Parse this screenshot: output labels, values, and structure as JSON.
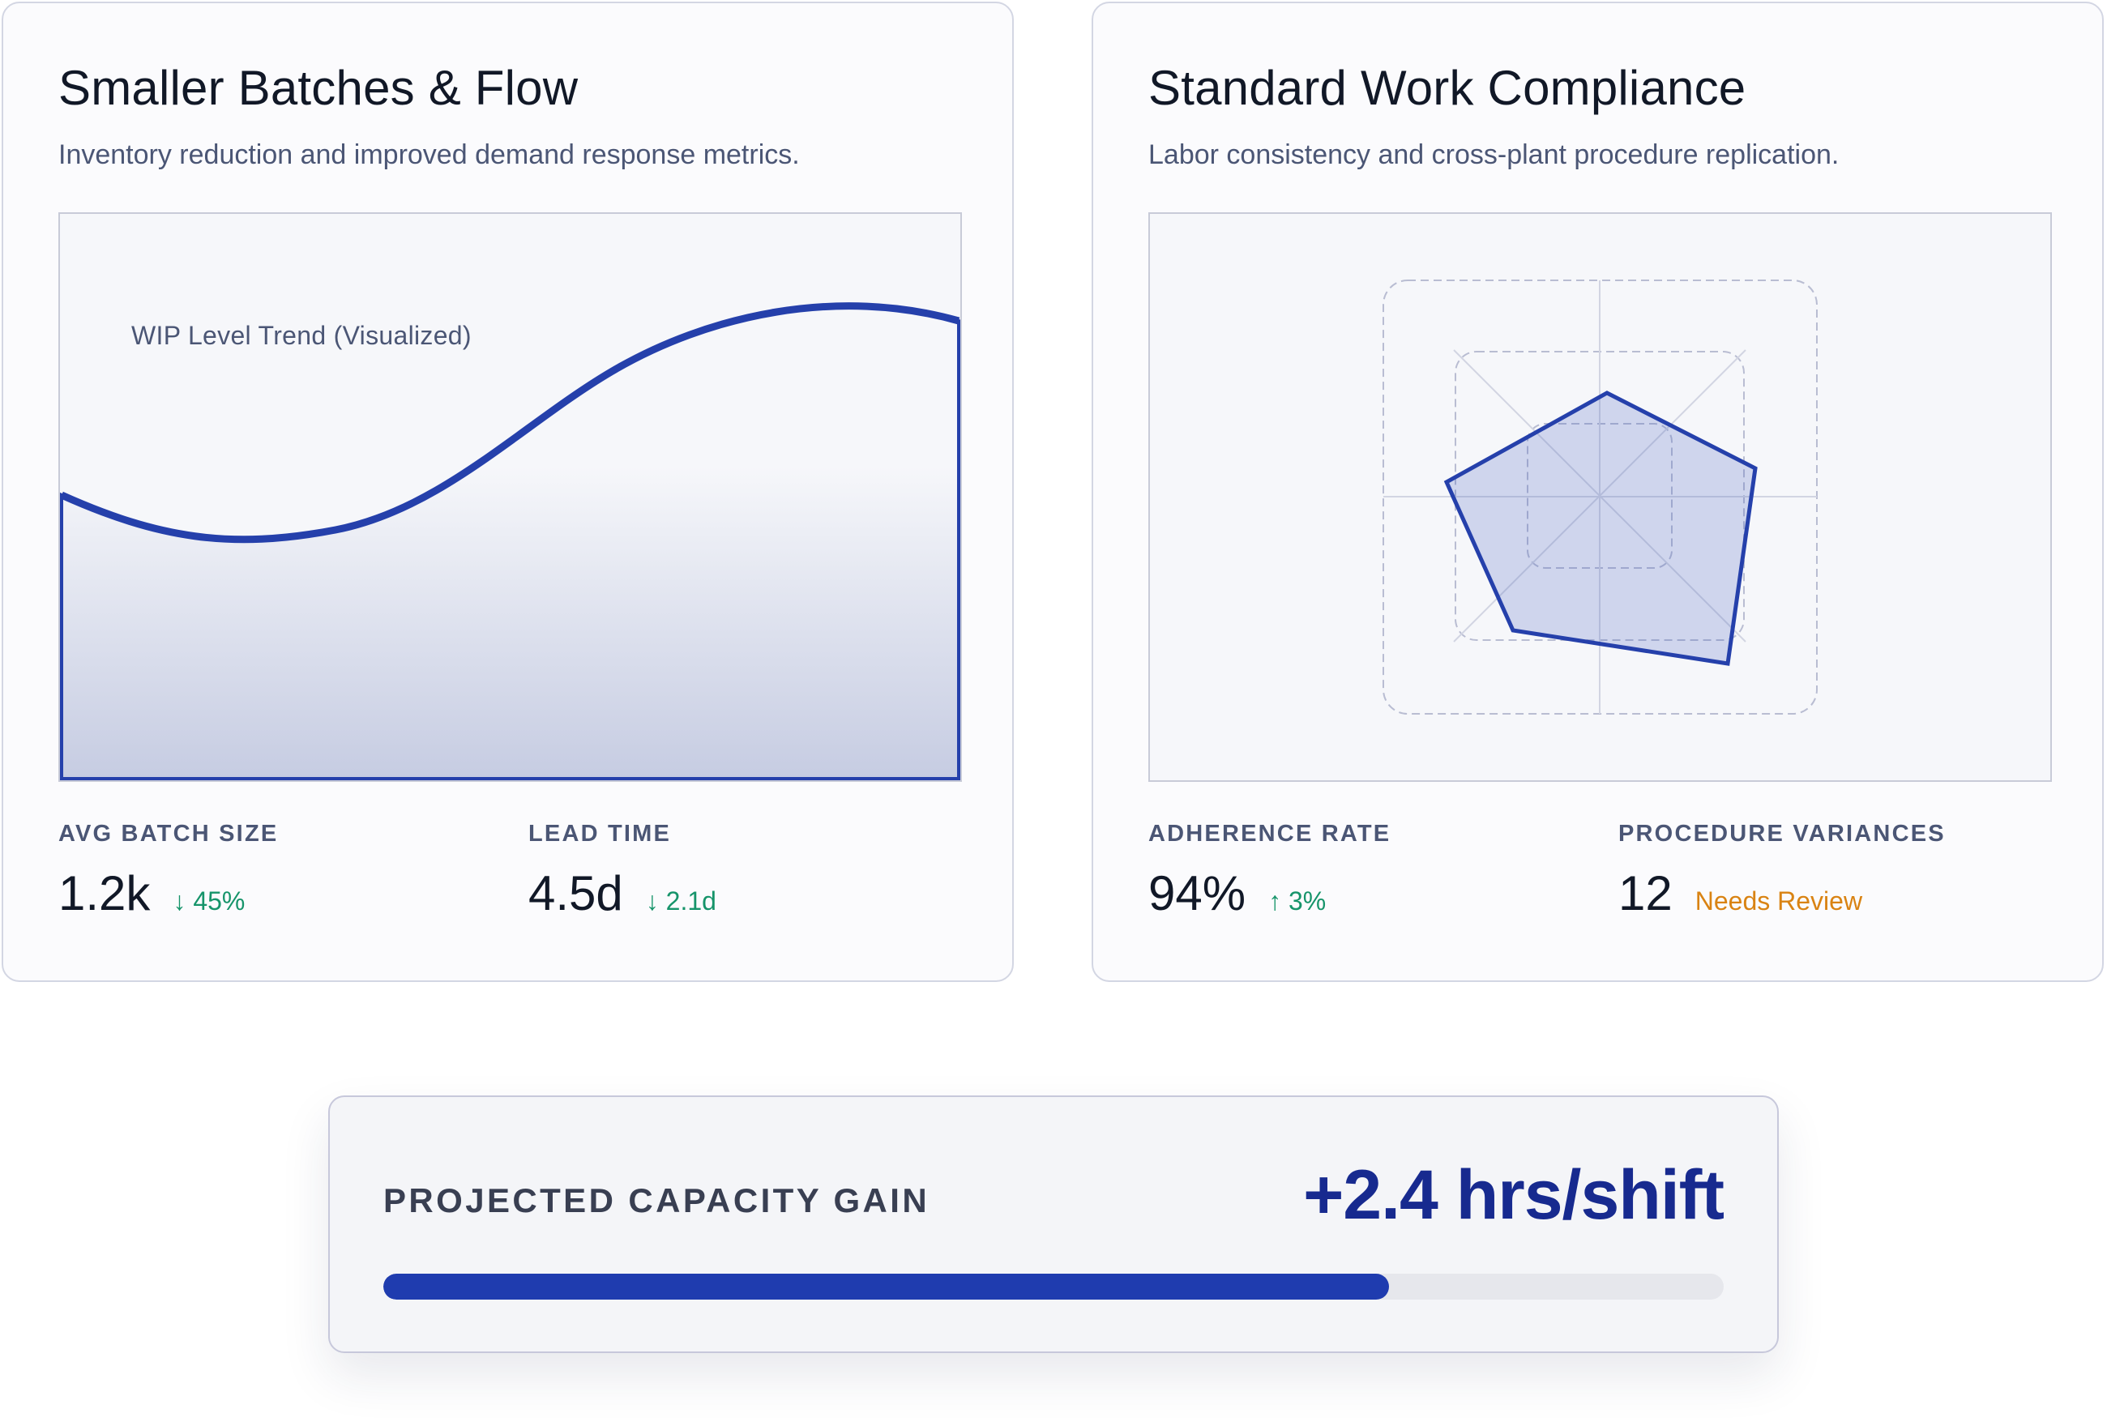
{
  "colors": {
    "accent": "#1f3caf",
    "accent_dark": "#172a8f",
    "positive": "#16946a",
    "warning": "#d98313",
    "text_primary": "#111827",
    "text_secondary": "#4b5675"
  },
  "batches_card": {
    "title": "Smaller Batches & Flow",
    "subtitle": "Inventory reduction and improved demand response metrics.",
    "chart_label": "WIP Level Trend (Visualized)",
    "metrics": [
      {
        "label": "AVG BATCH SIZE",
        "value": "1.2k",
        "delta": "↓ 45%",
        "delta_tone": "positive"
      },
      {
        "label": "LEAD TIME",
        "value": "4.5d",
        "delta": "↓ 2.1d",
        "delta_tone": "positive"
      }
    ]
  },
  "compliance_card": {
    "title": "Standard Work Compliance",
    "subtitle": "Labor consistency and cross-plant procedure replication.",
    "metrics": [
      {
        "label": "ADHERENCE RATE",
        "value": "94%",
        "delta": "↑ 3%",
        "delta_tone": "positive"
      },
      {
        "label": "PROCEDURE VARIANCES",
        "value": "12",
        "delta": "Needs Review",
        "delta_tone": "warning"
      }
    ]
  },
  "capacity": {
    "label": "PROJECTED CAPACITY GAIN",
    "value": "+2.4 hrs/shift",
    "progress_fraction": 0.75
  }
}
